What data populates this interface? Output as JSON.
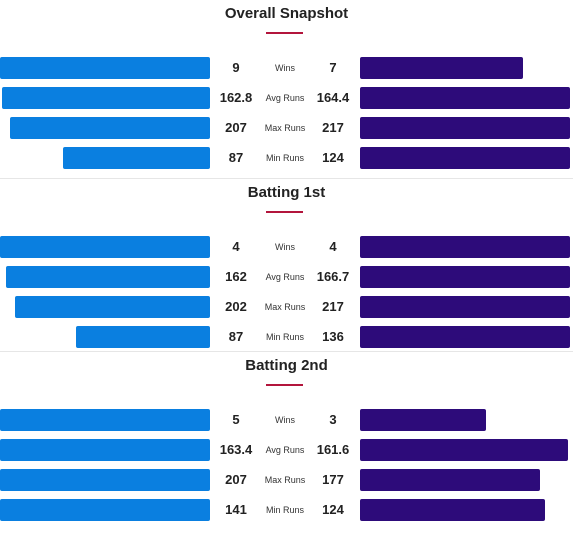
{
  "colors": {
    "left_team": "#0a7fe0",
    "right_team": "#2d0b7a",
    "accent_underline": "#b3153c",
    "divider": "#e6e6e6"
  },
  "chart_data": [
    {
      "type": "bar",
      "title": "Overall Snapshot",
      "categories": [
        "Wins",
        "Avg Runs",
        "Max Runs",
        "Min Runs"
      ],
      "series": [
        {
          "values": [
            9,
            162.8,
            207,
            87
          ]
        },
        {
          "values": [
            7,
            164.4,
            217,
            124
          ]
        }
      ]
    },
    {
      "type": "bar",
      "title": "Batting 1st",
      "categories": [
        "Wins",
        "Avg Runs",
        "Max Runs",
        "Min Runs"
      ],
      "series": [
        {
          "values": [
            4,
            162,
            202,
            87
          ]
        },
        {
          "values": [
            4,
            166.7,
            217,
            136
          ]
        }
      ]
    },
    {
      "type": "bar",
      "title": "Batting 2nd",
      "categories": [
        "Wins",
        "Avg Runs",
        "Max Runs",
        "Min Runs"
      ],
      "series": [
        {
          "values": [
            5,
            163.4,
            207,
            141
          ]
        },
        {
          "values": [
            3,
            161.6,
            177,
            124
          ]
        }
      ]
    }
  ]
}
